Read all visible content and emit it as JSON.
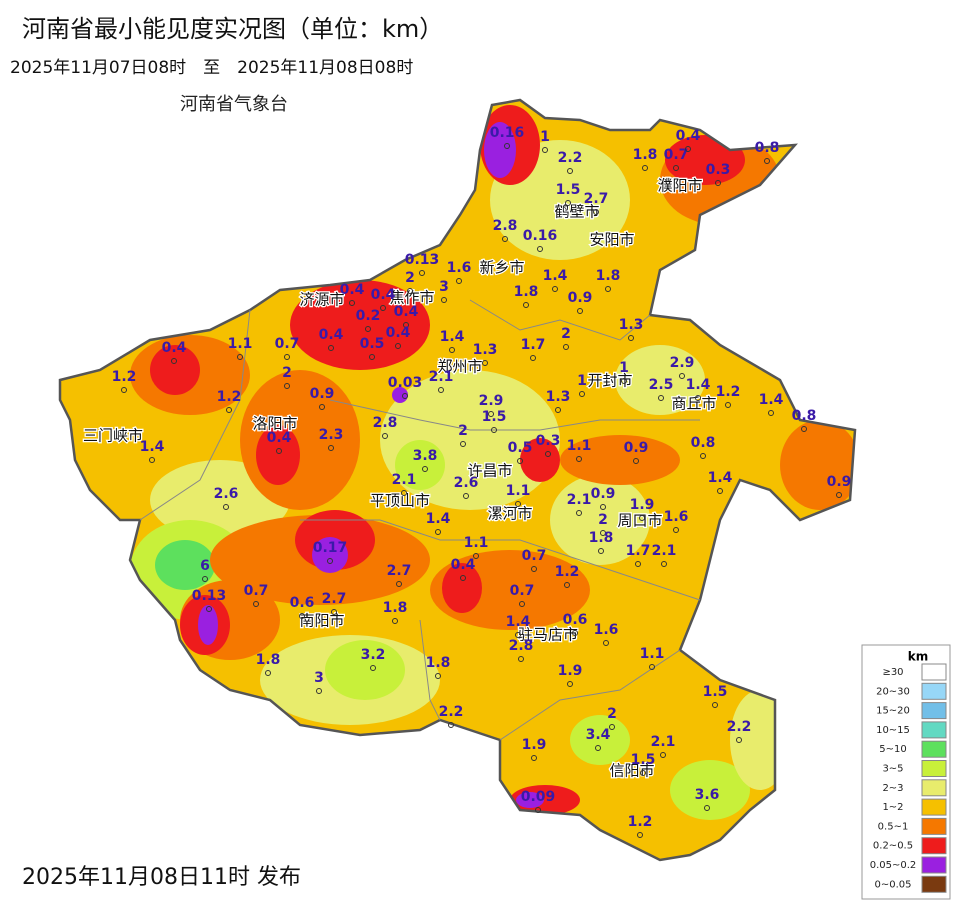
{
  "header": {
    "title": "河南省最小能见度实况图（单位：km）",
    "period": "2025年11月07日08时　至　2025年11月08日08时",
    "issuer": "河南省气象台"
  },
  "footer": {
    "published": "2025年11月08日11时 发布"
  },
  "cities": [
    "濮阳市",
    "鹤壁市",
    "安阳市",
    "新乡市",
    "焦作市",
    "济源市",
    "郑州市",
    "开封市",
    "商丘市",
    "三门峡市",
    "洛阳市",
    "许昌市",
    "平顶山市",
    "漯河市",
    "周口市",
    "南阳市",
    "驻马店市",
    "信阳市"
  ],
  "station_values": [
    0.16,
    1,
    2.2,
    1.8,
    0.7,
    0.4,
    0.8,
    0.3,
    1.5,
    2.7,
    2.8,
    0.16,
    0.13,
    2,
    1.6,
    1.4,
    1.8,
    0.4,
    0.4,
    3,
    1.8,
    0.9,
    0.4,
    0.2,
    0.4,
    0.5,
    0.4,
    1.4,
    1.3,
    1.7,
    2,
    1.3,
    0.4,
    1.1,
    0.7,
    2,
    1.2,
    1.2,
    0.9,
    0.03,
    2.1,
    1,
    1,
    2.9,
    2.5,
    1.4,
    1.2,
    1.4,
    0.8,
    2.9,
    1.5,
    1.3,
    1.4,
    0.4,
    2.3,
    2.8,
    2,
    0.5,
    0.3,
    1.1,
    0.9,
    0.8,
    1.4,
    0.9,
    3.8,
    2.1,
    2.6,
    1.1,
    2.1,
    0.9,
    1.9,
    2,
    1.6,
    1.4,
    2.6,
    1.8,
    1.7,
    2.1,
    1.1,
    0.17,
    6,
    0.7,
    0.4,
    2.7,
    1.2,
    0.13,
    0.7,
    0.6,
    2.7,
    1.8,
    0.7,
    1.4,
    0.6,
    1.6,
    2.8,
    1.9,
    1.1,
    1.8,
    3.2,
    1.8,
    3,
    1.5,
    2.2,
    2,
    2.2,
    3.4,
    1.9,
    2.1,
    1.5,
    3.6,
    0.09,
    1.2
  ],
  "legend": {
    "title": "km",
    "items": [
      {
        "label": "≥30",
        "color": "#ffffff"
      },
      {
        "label": "20~30",
        "color": "#97d7f7"
      },
      {
        "label": "15~20",
        "color": "#72bfe8"
      },
      {
        "label": "10~15",
        "color": "#62d9c2"
      },
      {
        "label": "5~10",
        "color": "#5de05d"
      },
      {
        "label": "3~5",
        "color": "#c8f03a"
      },
      {
        "label": "2~3",
        "color": "#e8ec6c"
      },
      {
        "label": "1~2",
        "color": "#f5c000"
      },
      {
        "label": "0.5~1",
        "color": "#f57800"
      },
      {
        "label": "0.2~0.5",
        "color": "#ee1c1c"
      },
      {
        "label": "0.05~0.2",
        "color": "#9a20e0"
      },
      {
        "label": "0~0.05",
        "color": "#7a3a10"
      }
    ]
  }
}
